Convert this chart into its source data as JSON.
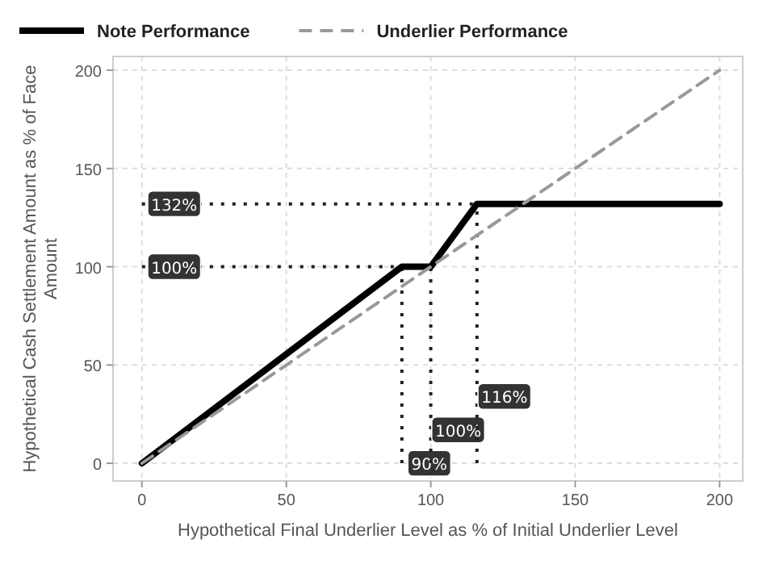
{
  "chart_data": {
    "type": "line",
    "xlabel": "Hypothetical Final Underlier Level as % of Initial Underlier Level",
    "ylabel": "Hypothetical Cash Settlement Amount as % of Face Amount",
    "xlim": [
      -10,
      208
    ],
    "ylim": [
      -9,
      207
    ],
    "xticks": [
      0,
      50,
      100,
      150,
      200
    ],
    "yticks": [
      0,
      50,
      100,
      150,
      200
    ],
    "grid": true,
    "legend": "top left",
    "series": [
      {
        "name": "Note Performance",
        "color": "#000000",
        "x": [
          0,
          90,
          100,
          116,
          200
        ],
        "values": [
          0,
          100,
          100,
          132,
          132
        ],
        "line_style": "solid"
      },
      {
        "name": "Underlier Performance",
        "color": "#999999",
        "x": [
          0,
          200
        ],
        "values": [
          0,
          200
        ],
        "line_style": "dashed"
      }
    ],
    "ref_lines": [
      {
        "axis": "y",
        "value": 132,
        "label": "132%",
        "color": "#222222",
        "line_style": "dotted"
      },
      {
        "axis": "y",
        "value": 100,
        "label": "100%",
        "color": "#222222",
        "line_style": "dotted"
      },
      {
        "axis": "x",
        "value": 90,
        "label": "90%",
        "color": "#222222",
        "line_style": "dotted"
      },
      {
        "axis": "x",
        "value": 100,
        "label": "100%",
        "color": "#222222",
        "line_style": "dotted"
      },
      {
        "axis": "x",
        "value": 116,
        "label": "116%",
        "color": "#222222",
        "line_style": "dotted"
      }
    ]
  }
}
